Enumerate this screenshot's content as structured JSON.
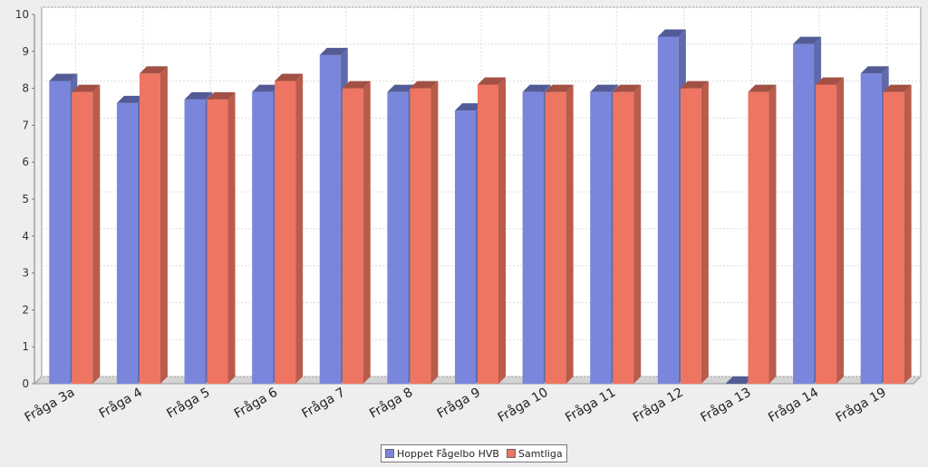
{
  "chart_data": {
    "type": "bar",
    "categories": [
      "Fråga 3a",
      "Fråga 4",
      "Fråga 5",
      "Fråga 6",
      "Fråga 7",
      "Fråga 8",
      "Fråga 9",
      "Fråga 10",
      "Fråga 11",
      "Fråga 12",
      "Fråga 13",
      "Fråga 14",
      "Fråga 19"
    ],
    "series": [
      {
        "name": "Hoppet Fågelbo HVB",
        "color": "#7a86dc",
        "values": [
          8.2,
          7.6,
          7.7,
          7.9,
          8.9,
          7.9,
          7.4,
          7.9,
          7.9,
          9.4,
          0,
          9.2,
          8.4
        ]
      },
      {
        "name": "Samtliga",
        "color": "#ee7562",
        "values": [
          7.9,
          8.4,
          7.7,
          8.2,
          8.0,
          8.0,
          8.1,
          7.9,
          7.9,
          8.0,
          7.9,
          8.1,
          7.9
        ]
      }
    ],
    "ylim": [
      0,
      10
    ],
    "yticks": [
      "0",
      "1",
      "2",
      "3",
      "4",
      "5",
      "6",
      "7",
      "8",
      "9",
      "10"
    ],
    "grid": true,
    "bar_style": "3d",
    "legend_position": "bottom-center"
  }
}
